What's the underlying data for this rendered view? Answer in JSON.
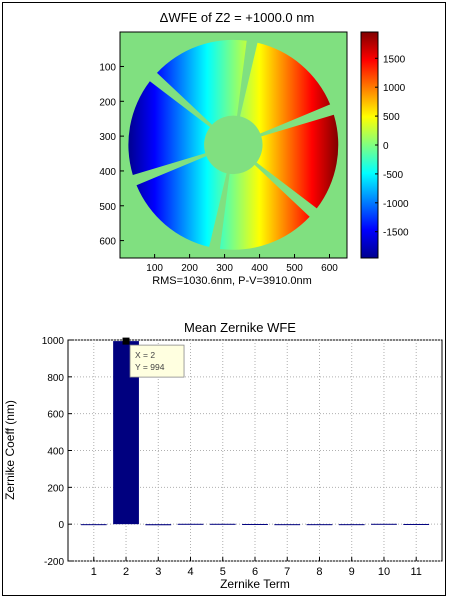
{
  "chart_data": [
    {
      "type": "heatmap",
      "title": "ΔWFE of Z2 = +1000.0 nm",
      "xlabel": "RMS=1030.6nm,  P-V=3910.0nm",
      "ylabel": "",
      "x_ticks": [
        100,
        200,
        300,
        400,
        500,
        600
      ],
      "y_ticks": [
        100,
        200,
        300,
        400,
        500,
        600
      ],
      "xlim": [
        1,
        650
      ],
      "ylim": [
        650,
        1
      ],
      "colorbar": {
        "ticks": [
          1500,
          1000,
          500,
          0,
          -500,
          -1000,
          -1500
        ],
        "range": [
          -1955,
          1955
        ],
        "colormap": "jet"
      },
      "background_color": "#80e080",
      "field": {
        "type": "tilt",
        "center": [
          325,
          325
        ],
        "outer_radius": 300,
        "inner_radius": 75,
        "segment_count": 6,
        "amplitude_per_pixel": 6.5
      }
    },
    {
      "type": "bar",
      "title": "Mean Zernike WFE",
      "xlabel": "Zernike Term",
      "ylabel": "Zernike Coeff (nm)",
      "categories": [
        1,
        2,
        3,
        4,
        5,
        6,
        7,
        8,
        9,
        10,
        11
      ],
      "values": [
        0,
        994,
        -6,
        2,
        2,
        1,
        0,
        0,
        0,
        2,
        1
      ],
      "ylim": [
        -200,
        1000
      ],
      "y_ticks": [
        -200,
        0,
        200,
        400,
        600,
        800,
        1000
      ],
      "grid": true,
      "bar_color": "#00007f",
      "datatip": {
        "x_label": "X = 2",
        "y_label": "Y = 994"
      }
    }
  ]
}
